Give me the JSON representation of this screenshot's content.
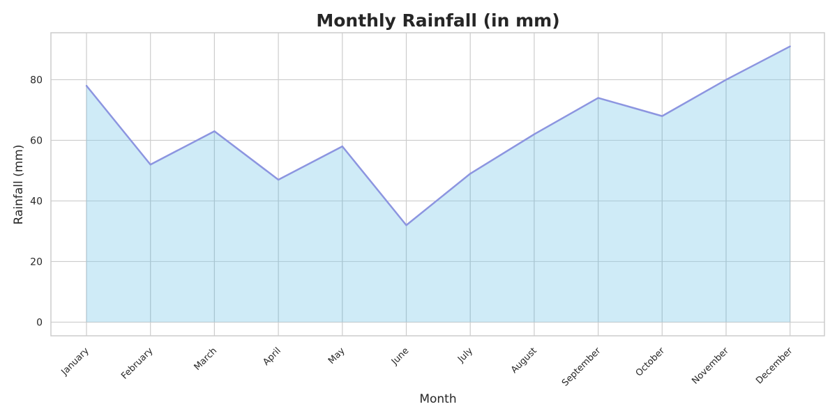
{
  "chart_data": {
    "type": "area",
    "title": "Monthly Rainfall (in mm)",
    "xlabel": "Month",
    "ylabel": "Rainfall (mm)",
    "categories": [
      "January",
      "February",
      "March",
      "April",
      "May",
      "June",
      "July",
      "August",
      "September",
      "October",
      "November",
      "December"
    ],
    "series": [
      {
        "values": [
          78,
          52,
          63,
          47,
          58,
          32,
          49,
          62,
          74,
          68,
          80,
          91
        ],
        "line_color": "#8c95e0",
        "fill_color": "#87ceeb"
      }
    ],
    "ylim": [
      -4.5,
      95.5
    ],
    "yticks": [
      0,
      20,
      40,
      60,
      80
    ],
    "grid": true,
    "x_tick_rotation": -45,
    "legend": "none",
    "colors": {
      "grid": "#cccccc",
      "axes_edge": "#cccccc",
      "text": "#262626",
      "background": "#ffffff"
    }
  }
}
